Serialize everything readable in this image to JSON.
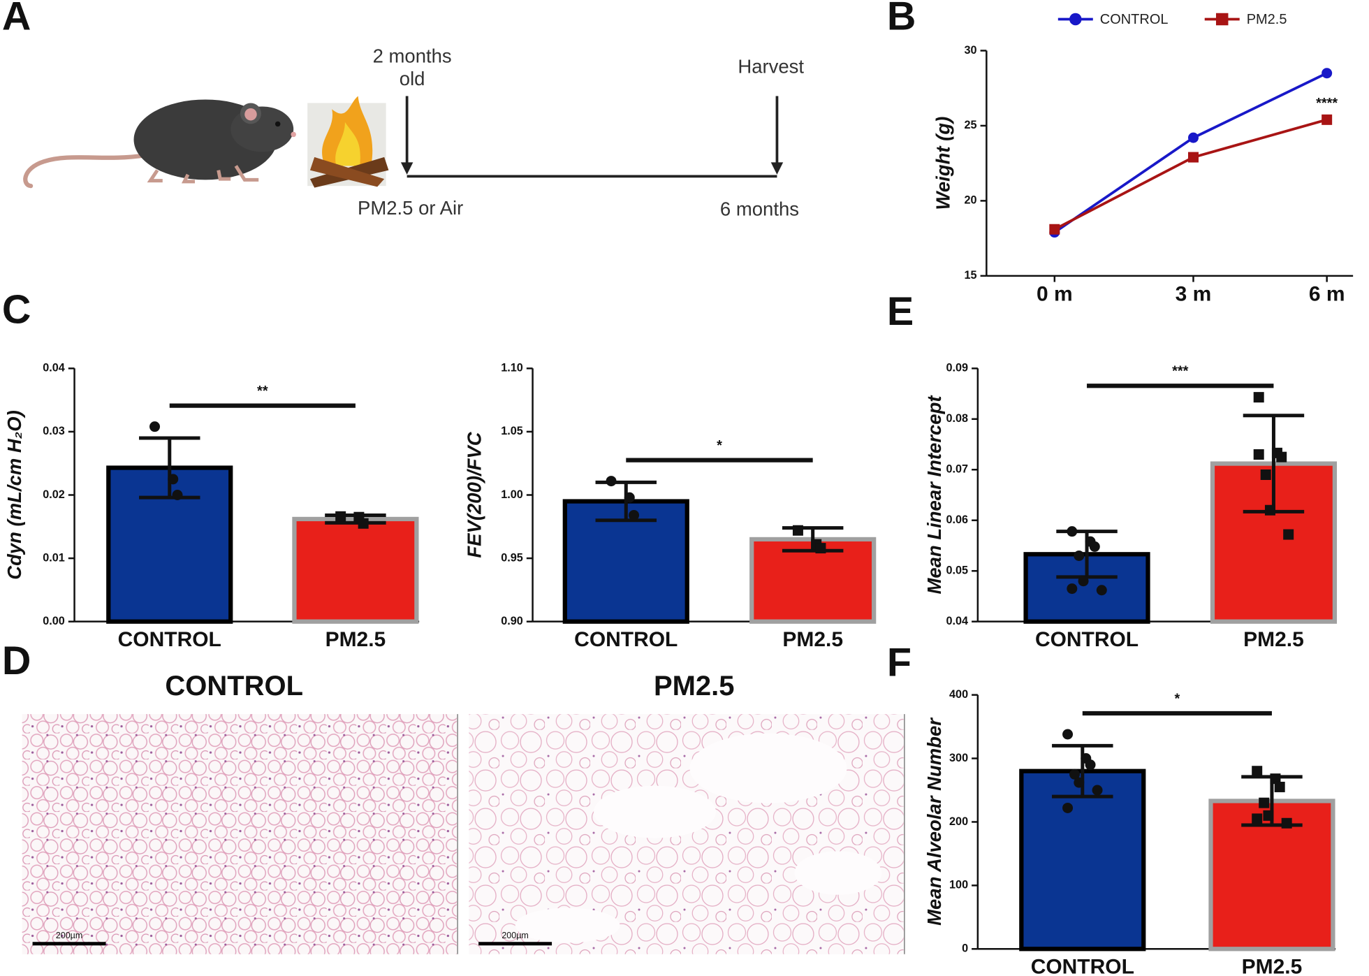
{
  "panel_labels": [
    "A",
    "B",
    "C",
    "D",
    "E",
    "F"
  ],
  "timeline": {
    "start_label": [
      "2 months",
      "old"
    ],
    "end_label": "Harvest",
    "exposure": "PM2.5 or Air",
    "duration": "6 months"
  },
  "histology": [
    {
      "title": "CONTROL",
      "scale_bar": "200µm"
    },
    {
      "title": "PM2.5",
      "scale_bar": "200µm"
    }
  ],
  "chart_data": [
    {
      "type": "line",
      "y_label": "Weight (g)",
      "categories": [
        "0 m",
        "3 m",
        "6 m"
      ],
      "series": [
        {
          "name": "CONTROL",
          "color": "#1818c8",
          "marker": "circle",
          "values": [
            17.9,
            24.2,
            28.5
          ]
        },
        {
          "name": "PM2.5",
          "color": "#a81414",
          "marker": "square",
          "values": [
            18.1,
            22.9,
            25.4
          ]
        }
      ],
      "ylim": [
        15,
        30
      ],
      "yticks": [
        15,
        20,
        25,
        30
      ],
      "annotation": "****",
      "legend": "top"
    },
    {
      "type": "bar",
      "y_label": "Cdyn (mL/cm H₂O)",
      "categories": [
        "CONTROL",
        "PM2.5"
      ],
      "values": [
        0.0243,
        0.0162
      ],
      "errors": [
        0.0047,
        0.0006
      ],
      "points": [
        [
          0.0308,
          0.0225,
          0.02
        ],
        [
          0.0166,
          0.0165,
          0.0155
        ]
      ],
      "colors": [
        "#0a3592",
        "#e8201a"
      ],
      "edge_colors": [
        "#000000",
        "#a0a0a0"
      ],
      "markers": [
        "circle",
        "square"
      ],
      "ylim": [
        0,
        0.04
      ],
      "yticks": [
        {
          "value": 0,
          "label": "0.00"
        },
        {
          "value": 0.01,
          "label": "0.01"
        },
        {
          "value": 0.02,
          "label": "0.02"
        },
        {
          "value": 0.03,
          "label": "0.03"
        },
        {
          "value": 0.04,
          "label": "0.04"
        }
      ],
      "annotation": "**"
    },
    {
      "type": "bar",
      "y_label": "FEV(200)/FVC",
      "categories": [
        "CONTROL",
        "PM2.5"
      ],
      "values": [
        0.995,
        0.965
      ],
      "errors": [
        0.015,
        0.009
      ],
      "points": [
        [
          1.011,
          0.998,
          0.984
        ],
        [
          0.972,
          0.961,
          0.958
        ]
      ],
      "colors": [
        "#0a3592",
        "#e8201a"
      ],
      "edge_colors": [
        "#000000",
        "#a0a0a0"
      ],
      "markers": [
        "circle",
        "square"
      ],
      "ylim": [
        0.9,
        1.1
      ],
      "yticks": [
        {
          "value": 0.9,
          "label": "0.90"
        },
        {
          "value": 0.95,
          "label": "0.95"
        },
        {
          "value": 1.0,
          "label": "1.00"
        },
        {
          "value": 1.05,
          "label": "1.05"
        },
        {
          "value": 1.1,
          "label": "1.10"
        }
      ],
      "annotation": "*"
    },
    {
      "type": "bar",
      "y_label": "Mean Linear Intercept",
      "categories": [
        "CONTROL",
        "PM2.5"
      ],
      "values": [
        0.0533,
        0.0712
      ],
      "errors": [
        0.0045,
        0.0095
      ],
      "points": [
        [
          0.0578,
          0.0558,
          0.0548,
          0.053,
          0.048,
          0.0462,
          0.0465
        ],
        [
          0.0843,
          0.0733,
          0.0725,
          0.069,
          0.062,
          0.0572,
          0.073
        ]
      ],
      "colors": [
        "#0a3592",
        "#e8201a"
      ],
      "edge_colors": [
        "#000000",
        "#a0a0a0"
      ],
      "markers": [
        "circle",
        "square"
      ],
      "ylim": [
        0.04,
        0.09
      ],
      "yticks": [
        {
          "value": 0.04,
          "label": "0.04"
        },
        {
          "value": 0.05,
          "label": "0.05"
        },
        {
          "value": 0.06,
          "label": "0.06"
        },
        {
          "value": 0.07,
          "label": "0.07"
        },
        {
          "value": 0.08,
          "label": "0.08"
        },
        {
          "value": 0.09,
          "label": "0.09"
        }
      ],
      "annotation": "***"
    },
    {
      "type": "bar",
      "y_label": "Mean Alveolar Number",
      "categories": [
        "CONTROL",
        "PM2.5"
      ],
      "values": [
        280,
        233
      ],
      "errors": [
        40,
        38
      ],
      "points": [
        [
          338,
          300,
          290,
          275,
          262,
          250,
          222
        ],
        [
          280,
          268,
          255,
          230,
          210,
          198,
          205
        ]
      ],
      "colors": [
        "#0a3592",
        "#e8201a"
      ],
      "edge_colors": [
        "#000000",
        "#a0a0a0"
      ],
      "markers": [
        "circle",
        "square"
      ],
      "ylim": [
        0,
        400
      ],
      "yticks": [
        0,
        100,
        200,
        300,
        400
      ],
      "annotation": "*"
    }
  ]
}
